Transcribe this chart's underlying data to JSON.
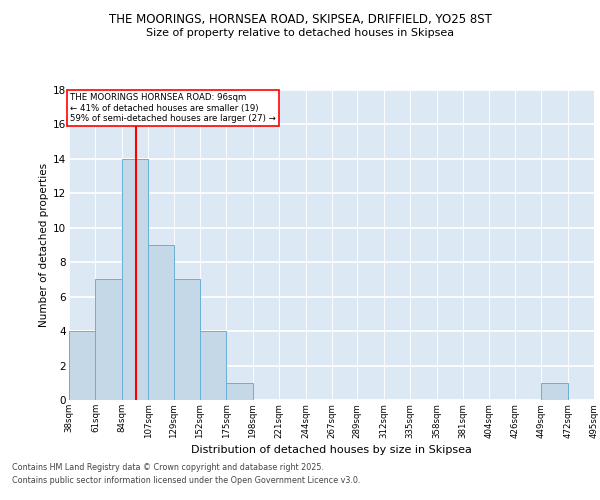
{
  "title_line1": "THE MOORINGS, HORNSEA ROAD, SKIPSEA, DRIFFIELD, YO25 8ST",
  "title_line2": "Size of property relative to detached houses in Skipsea",
  "xlabel": "Distribution of detached houses by size in Skipsea",
  "ylabel": "Number of detached properties",
  "bar_values": [
    4,
    7,
    14,
    9,
    7,
    4,
    1,
    0,
    0,
    0,
    0,
    0,
    0,
    0,
    0,
    0,
    0,
    0,
    1,
    0
  ],
  "bin_labels": [
    "38sqm",
    "61sqm",
    "84sqm",
    "107sqm",
    "129sqm",
    "152sqm",
    "175sqm",
    "198sqm",
    "221sqm",
    "244sqm",
    "267sqm",
    "289sqm",
    "312sqm",
    "335sqm",
    "358sqm",
    "381sqm",
    "404sqm",
    "426sqm",
    "449sqm",
    "472sqm",
    "495sqm"
  ],
  "bin_edges": [
    38,
    61,
    84,
    107,
    129,
    152,
    175,
    198,
    221,
    244,
    267,
    289,
    312,
    335,
    358,
    381,
    404,
    426,
    449,
    472,
    495
  ],
  "bar_color": "#c5d8e8",
  "bar_edge_color": "#6baed6",
  "red_line_x": 96,
  "ylim": [
    0,
    18
  ],
  "yticks": [
    0,
    2,
    4,
    6,
    8,
    10,
    12,
    14,
    16,
    18
  ],
  "annotation_text": "THE MOORINGS HORNSEA ROAD: 96sqm\n← 41% of detached houses are smaller (19)\n59% of semi-detached houses are larger (27) →",
  "footer_line1": "Contains HM Land Registry data © Crown copyright and database right 2025.",
  "footer_line2": "Contains public sector information licensed under the Open Government Licence v3.0.",
  "bg_color": "#dce8f3",
  "grid_color": "#ffffff",
  "fig_bg": "#ffffff"
}
